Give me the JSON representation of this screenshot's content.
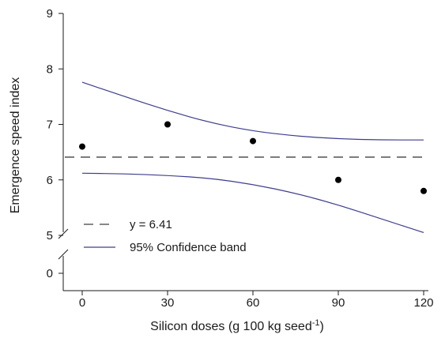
{
  "chart_data": {
    "type": "scatter",
    "xlabel": "Silicon doses (g 100 kg seed",
    "xlabel_superscript": "-1",
    "xlabel_suffix": ")",
    "ylabel": "Emergence speed index",
    "x_ticks": [
      0,
      30,
      60,
      90,
      120
    ],
    "x_tick_labels": [
      "0",
      "30",
      "60",
      "90",
      "120"
    ],
    "y_ticks": [
      5,
      6,
      7,
      8,
      9
    ],
    "y_tick_labels": [
      "5",
      "6",
      "7",
      "8",
      "9"
    ],
    "y_zero_label": "0",
    "xlim": [
      -5,
      125
    ],
    "ylim": [
      4.5,
      9
    ],
    "y_axis_break": true,
    "grid": false,
    "legend_position": "bottom-left",
    "series": [
      {
        "name": "observed",
        "kind": "points",
        "color": "#000000",
        "x": [
          0,
          30,
          60,
          90,
          120
        ],
        "y": [
          6.6,
          7.0,
          6.7,
          6.0,
          5.8
        ]
      },
      {
        "name": "y = 6.41",
        "kind": "dashed-line",
        "color": "#404040",
        "x": [
          -5,
          120
        ],
        "y": [
          6.41,
          6.41
        ]
      },
      {
        "name": "95% Confidence band",
        "kind": "band-upper",
        "color": "#3d3d8f",
        "x": [
          0,
          15,
          30,
          45,
          60,
          75,
          90,
          105,
          120
        ],
        "y": [
          7.76,
          7.5,
          7.25,
          7.03,
          6.88,
          6.79,
          6.74,
          6.72,
          6.72
        ]
      },
      {
        "name": "95% Confidence band",
        "kind": "band-lower",
        "color": "#3d3d8f",
        "x": [
          0,
          15,
          30,
          45,
          60,
          75,
          90,
          105,
          120
        ],
        "y": [
          6.12,
          6.11,
          6.08,
          6.03,
          5.92,
          5.76,
          5.55,
          5.3,
          5.05
        ]
      }
    ],
    "legend": [
      {
        "label": "y = 6.41",
        "style": "dashed",
        "color": "#404040"
      },
      {
        "label": "95% Confidence band",
        "style": "solid",
        "color": "#3d3d8f"
      }
    ]
  }
}
